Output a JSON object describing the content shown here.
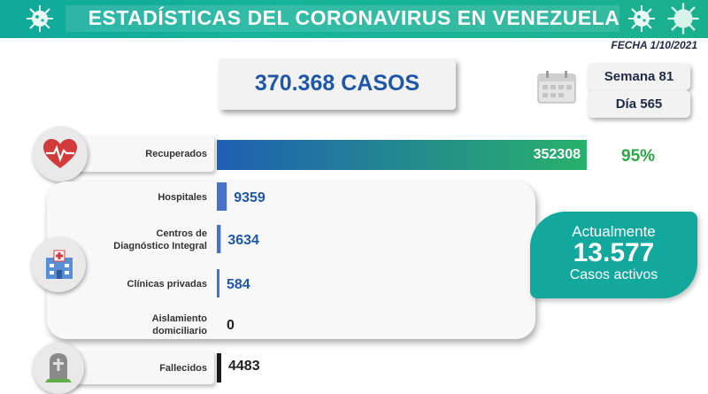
{
  "header": {
    "title": "ESTADÍSTICAS DEL CORONAVIRUS EN VENEZUELA"
  },
  "date": "FECHA 1/10/2021",
  "total": {
    "label": "370.368 CASOS"
  },
  "week": "Semana 81",
  "day": "Día 565",
  "recovered": {
    "label": "Recuperados",
    "value": "352308",
    "percent": "95%"
  },
  "active": {
    "line1": "Actualmente",
    "value": "13.577",
    "line3": "Casos activos"
  },
  "deaths": {
    "label": "Fallecidos",
    "value": "4483"
  },
  "colors": {
    "header": "#17b39a",
    "recovered_start": "#1f5fb4",
    "recovered_end": "#27b16a",
    "bar_blue": "#4a72c6",
    "deaths_bar": "#1a1a1a",
    "active_box": "#13a89e"
  },
  "chart_data": {
    "type": "bar",
    "orientation": "horizontal",
    "categories": [
      "Recuperados",
      "Hospitales",
      "Centros de Diagnóstico Integral",
      "Clínicas privadas",
      "Aislamiento domiciliario",
      "Fallecidos"
    ],
    "values": [
      352308,
      9359,
      3634,
      584,
      0,
      4483
    ],
    "value_labels": [
      "352308",
      "9359",
      "3634",
      "584",
      "0",
      "4483"
    ],
    "active_breakdown": {
      "categories": [
        "Hospitales",
        "Centros de Diagnóstico Integral",
        "Clínicas privadas",
        "Aislamiento domiciliario"
      ],
      "category_lines": [
        [
          "Hospitales"
        ],
        [
          "Centros de",
          "Diagnóstico Integral"
        ],
        [
          "Clínicas privadas"
        ],
        [
          "Aislamiento",
          "domiciliario"
        ]
      ],
      "values": [
        9359,
        3634,
        584,
        0
      ]
    },
    "grid": false,
    "legend": "none"
  }
}
